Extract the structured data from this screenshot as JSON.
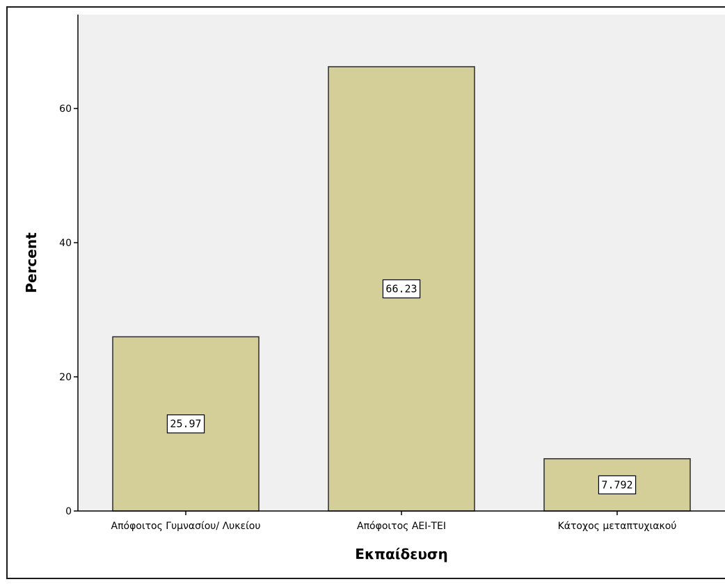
{
  "chart_data": {
    "type": "bar",
    "title": "",
    "xlabel": "Εκπαίδευση",
    "ylabel": "Percent",
    "categories": [
      "Απόφοιτος Γυμνασίου/ Λυκείου",
      "Απόφοιτος ΑΕΙ-ΤΕΙ",
      "Κάτοχος μεταπτυχιακού"
    ],
    "values": [
      25.97,
      66.23,
      7.792
    ],
    "data_labels": [
      "25.97",
      "66.23",
      "7.792"
    ],
    "ylim": [
      0,
      74
    ],
    "yticks": [
      0,
      20,
      40,
      60
    ],
    "grid": false,
    "colors": {
      "bar_fill": "#d4cf99",
      "bar_stroke": "#2a2a2a",
      "plot_bg": "#f0f0f0",
      "label_bg": "#ffffff"
    }
  }
}
